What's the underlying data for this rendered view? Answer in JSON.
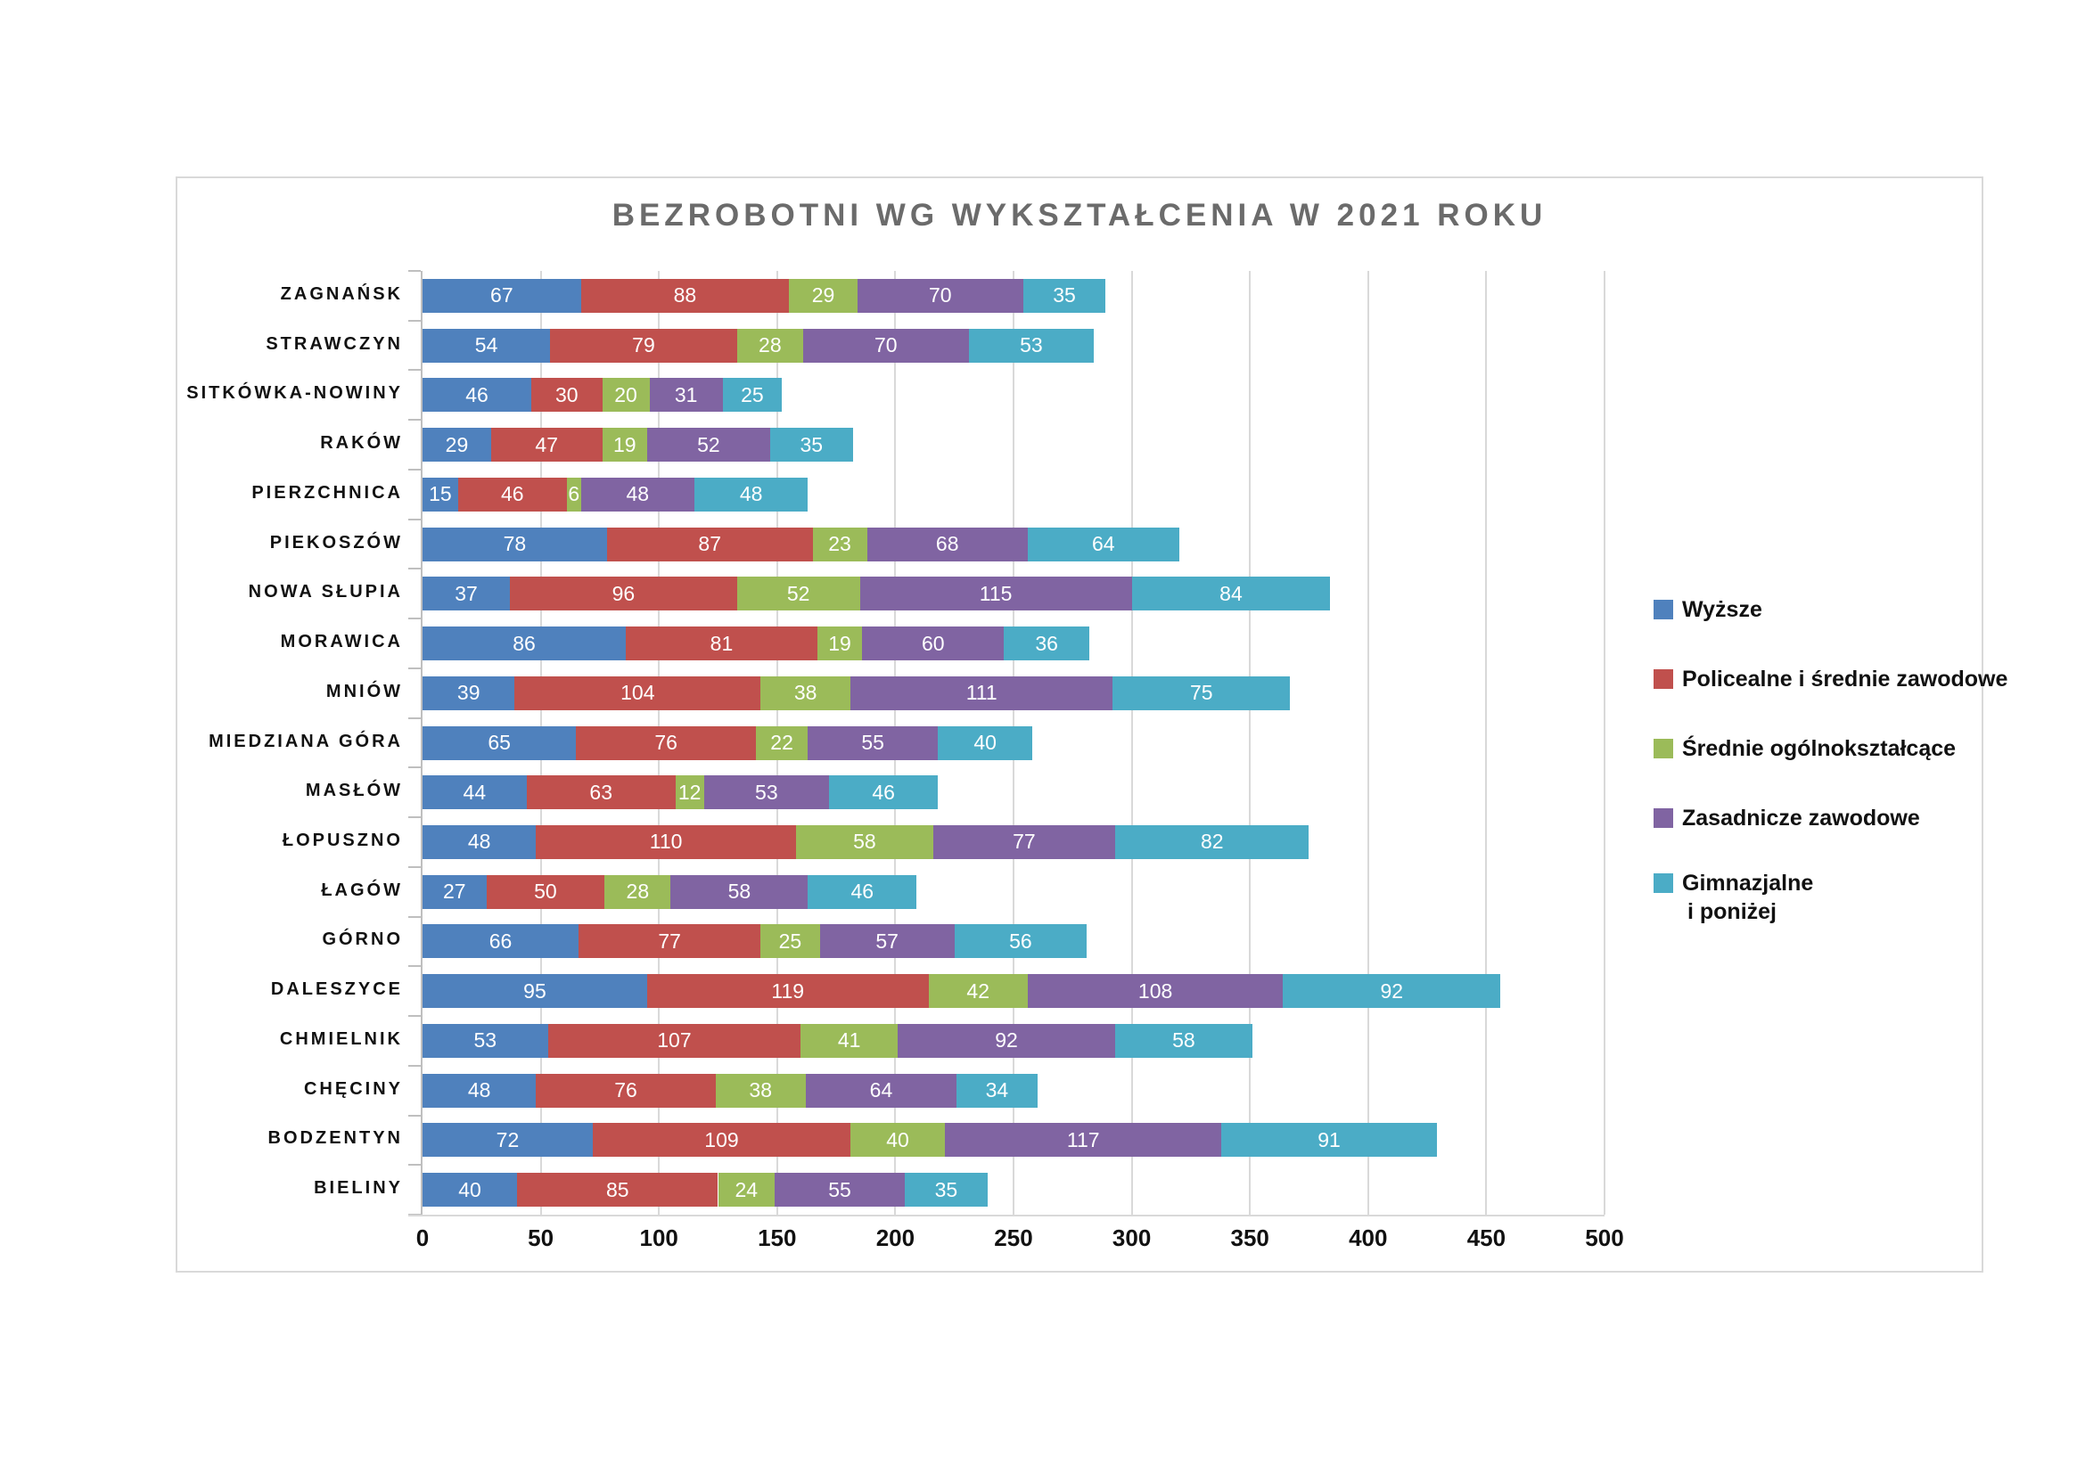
{
  "title": "BEZROBOTNI WG WYKSZTAŁCENIA W 2021 ROKU",
  "chart_data": {
    "type": "bar",
    "orientation": "horizontal",
    "stacked": true,
    "title": "BEZROBOTNI WG WYKSZTAŁCENIA W 2021 ROKU",
    "xlabel": "",
    "ylabel": "",
    "grid": true,
    "legend_position": "right",
    "x_axis": {
      "min": 0,
      "max": 500,
      "step": 50,
      "ticks": [
        0,
        50,
        100,
        150,
        200,
        250,
        300,
        350,
        400,
        450,
        500
      ]
    },
    "categories": [
      "ZAGNAŃSK",
      "STRAWCZYN",
      "SITKÓWKA-NOWINY",
      "RAKÓW",
      "PIERZCHNICA",
      "PIEKOSZÓW",
      "NOWA SŁUPIA",
      "MORAWICA",
      "MNIÓW",
      "MIEDZIANA GÓRA",
      "MASŁÓW",
      "ŁOPUSZNO",
      "ŁAGÓW",
      "GÓRNO",
      "DALESZYCE",
      "CHMIELNIK",
      "CHĘCINY",
      "BODZENTYN",
      "BIELINY"
    ],
    "series": [
      {
        "name": "Wyższe",
        "color": "#4F81BD",
        "legend_label_lines": [
          "Wyższe"
        ],
        "values": [
          67,
          54,
          46,
          29,
          15,
          78,
          37,
          86,
          39,
          65,
          44,
          48,
          27,
          66,
          95,
          53,
          48,
          72,
          40
        ]
      },
      {
        "name": "Policealne i średnie zawodowe",
        "color": "#C0504D",
        "legend_label_lines": [
          "Policealne i średnie zawodowe"
        ],
        "values": [
          88,
          79,
          30,
          47,
          46,
          87,
          96,
          81,
          104,
          76,
          63,
          110,
          50,
          77,
          119,
          107,
          76,
          109,
          85
        ]
      },
      {
        "name": "Średnie ogólnokształcące",
        "color": "#9BBB59",
        "legend_label_lines": [
          "Średnie ogólnokształcące"
        ],
        "values": [
          29,
          28,
          20,
          19,
          6,
          23,
          52,
          19,
          38,
          22,
          12,
          58,
          28,
          25,
          42,
          41,
          38,
          40,
          24
        ]
      },
      {
        "name": "Zasadnicze zawodowe",
        "color": "#8064A2",
        "legend_label_lines": [
          "Zasadnicze zawodowe"
        ],
        "values": [
          70,
          70,
          31,
          52,
          48,
          68,
          115,
          60,
          111,
          55,
          53,
          77,
          58,
          57,
          108,
          92,
          64,
          117,
          55
        ]
      },
      {
        "name": "Gimnazjalne i poniżej",
        "color": "#4BACC6",
        "legend_label_lines": [
          "Gimnazjalne",
          "i poniżej"
        ],
        "values": [
          35,
          53,
          25,
          35,
          48,
          64,
          84,
          36,
          75,
          40,
          46,
          82,
          46,
          56,
          92,
          58,
          34,
          91,
          35
        ]
      }
    ]
  }
}
